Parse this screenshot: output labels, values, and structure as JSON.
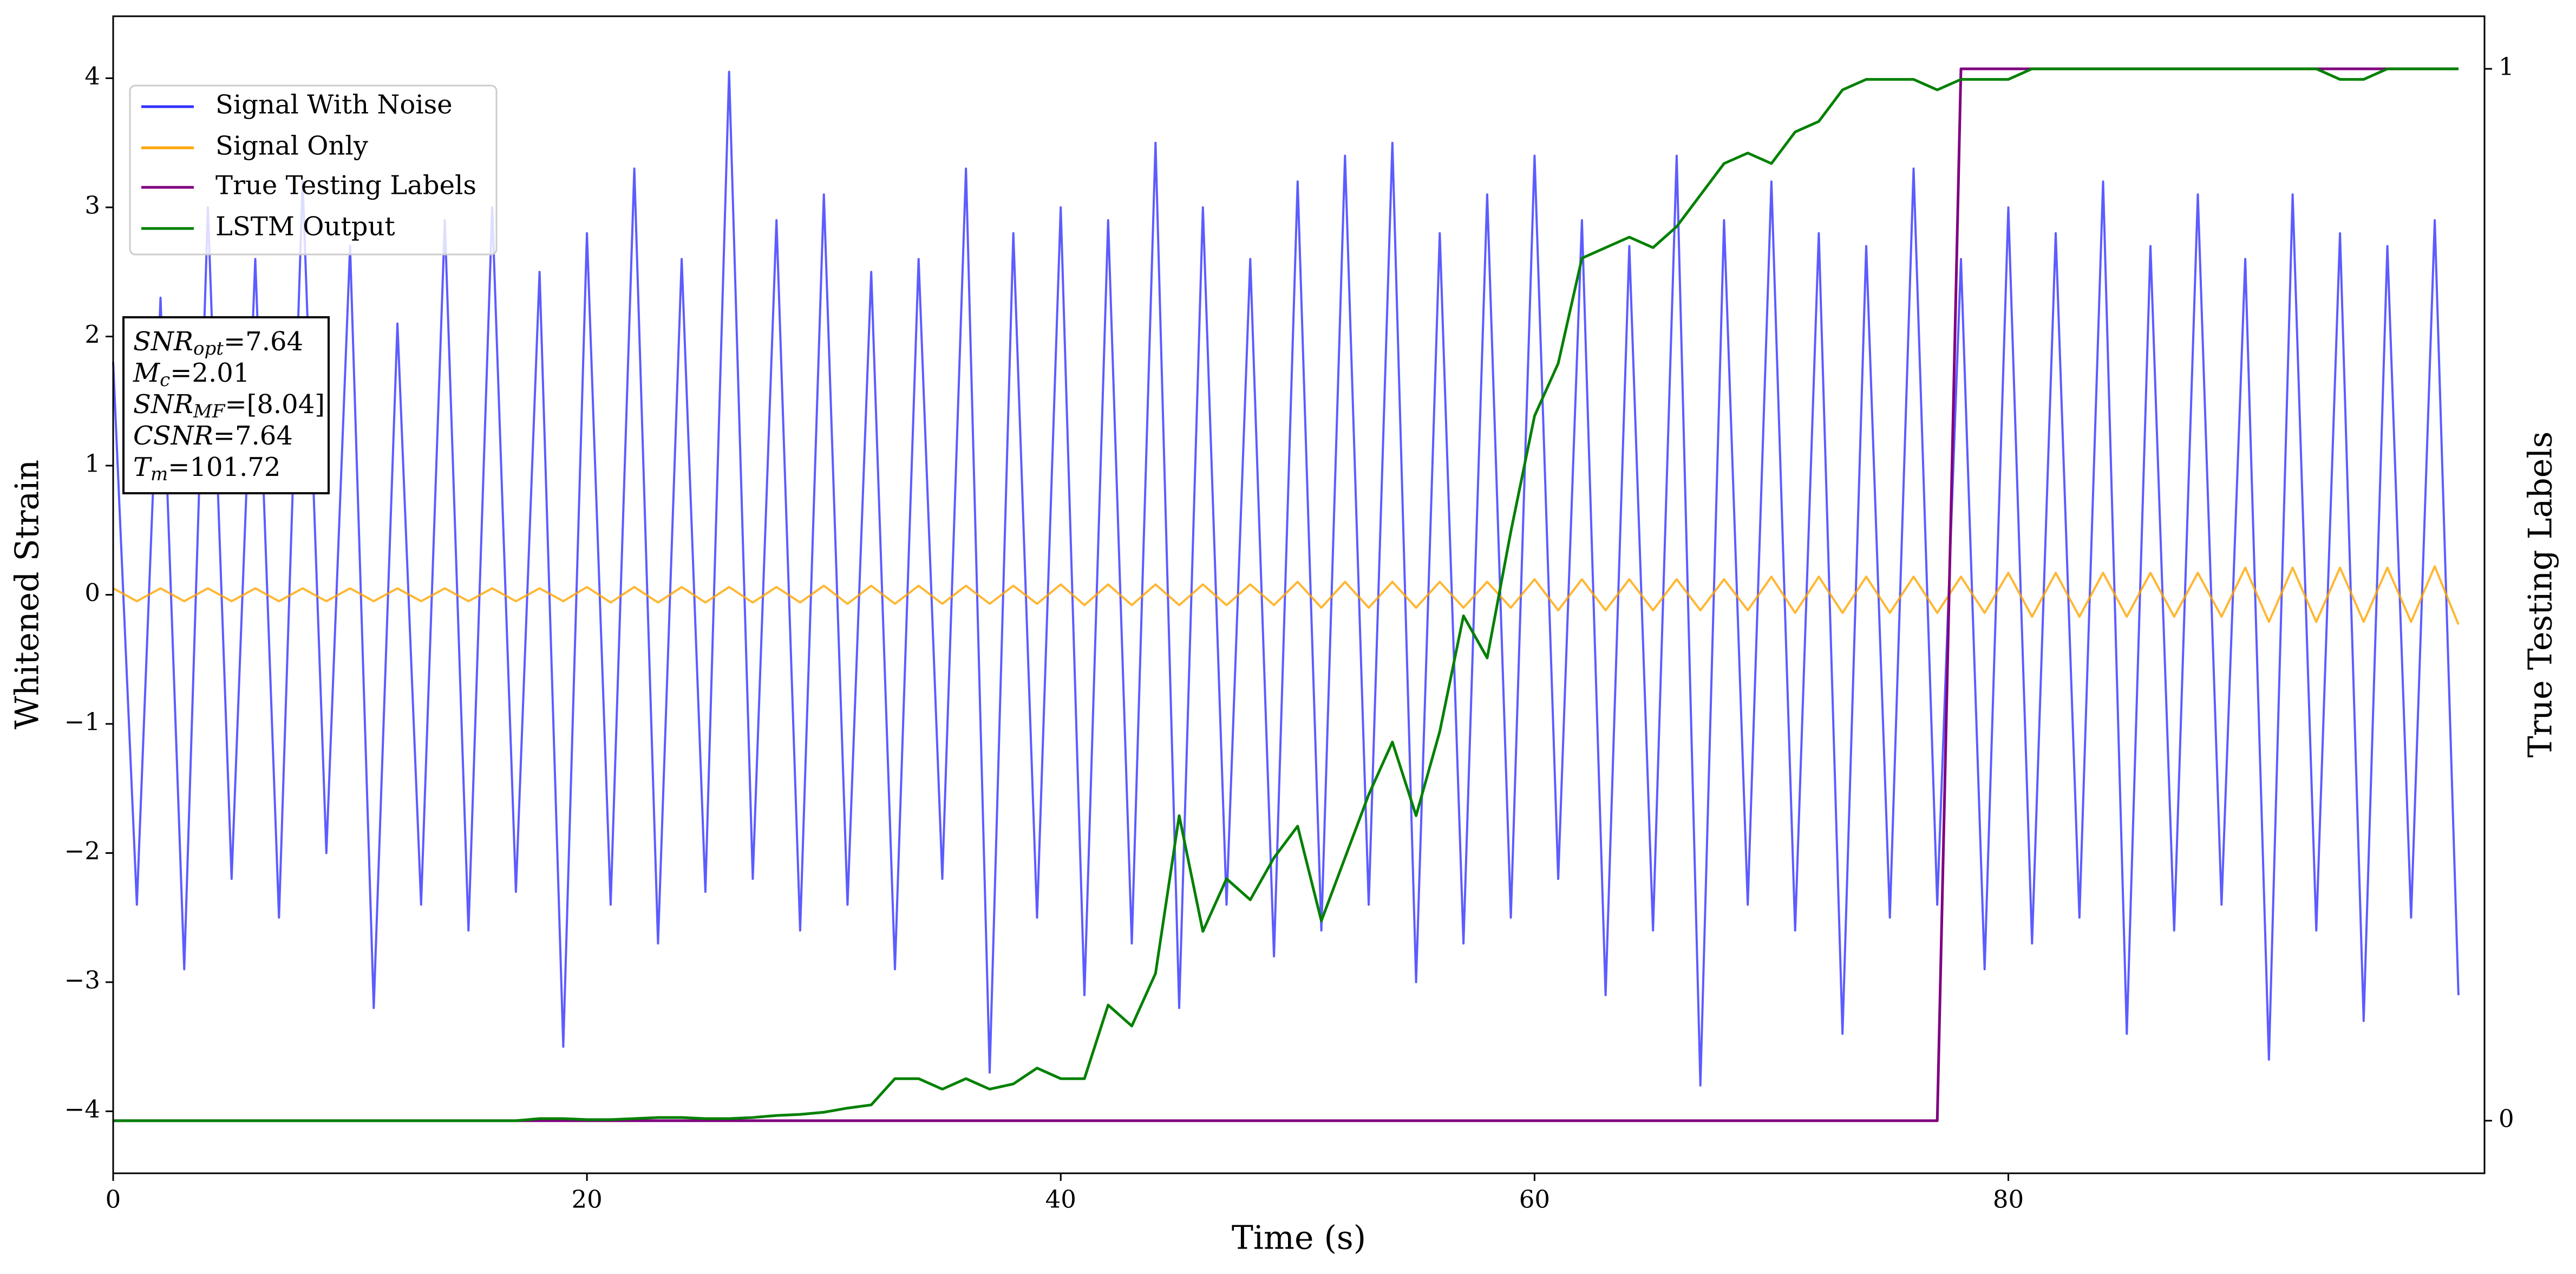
{
  "chart_data": {
    "type": "line",
    "xlabel": "Time (s)",
    "ylabel": "Whitened Strain",
    "y2label": "True Testing Labels",
    "x": [
      0,
      1,
      2,
      3,
      4,
      5,
      6,
      7,
      8,
      9,
      10,
      11,
      12,
      13,
      14,
      15,
      16,
      17,
      18,
      19,
      20,
      21,
      22,
      23,
      24,
      25,
      26,
      27,
      28,
      29,
      30,
      31,
      32,
      33,
      34,
      35,
      36,
      37,
      38,
      39,
      40,
      41,
      42,
      43,
      44,
      45,
      46,
      47,
      48,
      49,
      50,
      51,
      52,
      53,
      54,
      55,
      56,
      57,
      58,
      59,
      60,
      61,
      62,
      63,
      64,
      65,
      66,
      67,
      68,
      69,
      70,
      71,
      72,
      73,
      74,
      75,
      76,
      77,
      78,
      79,
      80,
      81,
      82,
      83,
      84,
      85,
      86,
      87,
      88,
      89,
      90,
      91,
      92,
      93,
      94,
      95,
      96,
      97,
      98,
      99
    ],
    "series": [
      {
        "name": "Signal With Noise",
        "color": "#3333ff",
        "values": [
          1.8,
          -2.4,
          2.3,
          -2.9,
          3.0,
          -2.2,
          2.6,
          -2.5,
          3.2,
          -2.0,
          2.7,
          -3.2,
          2.1,
          -2.4,
          2.9,
          -2.6,
          3.0,
          -2.3,
          2.5,
          -3.5,
          2.8,
          -2.4,
          3.3,
          -2.7,
          2.6,
          -2.3,
          4.05,
          -2.2,
          2.9,
          -2.6,
          3.1,
          -2.4,
          2.5,
          -2.9,
          2.6,
          -2.2,
          3.3,
          -3.7,
          2.8,
          -2.5,
          3.0,
          -3.1,
          2.9,
          -2.7,
          3.5,
          -3.2,
          3.0,
          -2.4,
          2.6,
          -2.8,
          3.2,
          -2.6,
          3.4,
          -2.4,
          3.5,
          -3.0,
          2.8,
          -2.7,
          3.1,
          -2.5,
          3.4,
          -2.2,
          2.9,
          -3.1,
          2.7,
          -2.6,
          3.4,
          -3.8,
          2.9,
          -2.4,
          3.2,
          -2.6,
          2.8,
          -3.4,
          2.7,
          -2.5,
          3.3,
          -2.4,
          2.6,
          -2.9,
          3.0,
          -2.7,
          2.8,
          -2.5,
          3.2,
          -3.4,
          2.7,
          -2.6,
          3.1,
          -2.4,
          2.6,
          -3.6,
          3.1,
          -2.6,
          2.8,
          -3.3,
          2.7,
          -2.5,
          2.9,
          -3.1
        ]
      },
      {
        "name": "Signal Only",
        "color": "#ffa500",
        "values": [
          0.05,
          -0.05,
          0.05,
          -0.05,
          0.05,
          -0.05,
          0.05,
          -0.05,
          0.05,
          -0.05,
          0.05,
          -0.05,
          0.05,
          -0.05,
          0.05,
          -0.05,
          0.05,
          -0.05,
          0.05,
          -0.05,
          0.06,
          -0.06,
          0.06,
          -0.06,
          0.06,
          -0.06,
          0.06,
          -0.06,
          0.06,
          -0.06,
          0.07,
          -0.07,
          0.07,
          -0.07,
          0.07,
          -0.07,
          0.07,
          -0.07,
          0.07,
          -0.07,
          0.08,
          -0.08,
          0.08,
          -0.08,
          0.08,
          -0.08,
          0.08,
          -0.08,
          0.08,
          -0.08,
          0.1,
          -0.1,
          0.1,
          -0.1,
          0.1,
          -0.1,
          0.1,
          -0.1,
          0.1,
          -0.1,
          0.12,
          -0.12,
          0.12,
          -0.12,
          0.12,
          -0.12,
          0.12,
          -0.12,
          0.12,
          -0.12,
          0.14,
          -0.14,
          0.14,
          -0.14,
          0.14,
          -0.14,
          0.14,
          -0.14,
          0.14,
          -0.14,
          0.17,
          -0.17,
          0.17,
          -0.17,
          0.17,
          -0.17,
          0.17,
          -0.17,
          0.17,
          -0.17,
          0.21,
          -0.21,
          0.21,
          -0.21,
          0.21,
          -0.21,
          0.21,
          -0.21,
          0.22,
          -0.23
        ]
      },
      {
        "name": "True Testing Labels",
        "color": "#800080",
        "axis": "y2",
        "values": [
          0,
          0,
          0,
          0,
          0,
          0,
          0,
          0,
          0,
          0,
          0,
          0,
          0,
          0,
          0,
          0,
          0,
          0,
          0,
          0,
          0,
          0,
          0,
          0,
          0,
          0,
          0,
          0,
          0,
          0,
          0,
          0,
          0,
          0,
          0,
          0,
          0,
          0,
          0,
          0,
          0,
          0,
          0,
          0,
          0,
          0,
          0,
          0,
          0,
          0,
          0,
          0,
          0,
          0,
          0,
          0,
          0,
          0,
          0,
          0,
          0,
          0,
          0,
          0,
          0,
          0,
          0,
          0,
          0,
          0,
          0,
          0,
          0,
          0,
          0,
          0,
          0,
          0,
          1,
          1,
          1,
          1,
          1,
          1,
          1,
          1,
          1,
          1,
          1,
          1,
          1,
          1,
          1,
          1,
          1,
          1,
          1,
          1,
          1,
          1
        ]
      },
      {
        "name": "LSTM Output",
        "color": "#008000",
        "axis": "y2",
        "values": [
          0,
          0,
          0,
          0,
          0,
          0,
          0,
          0,
          0,
          0,
          0,
          0,
          0,
          0,
          0,
          0,
          0,
          0,
          0.002,
          0.002,
          0.001,
          0.001,
          0.002,
          0.003,
          0.003,
          0.002,
          0.002,
          0.003,
          0.005,
          0.006,
          0.008,
          0.012,
          0.015,
          0.04,
          0.04,
          0.03,
          0.04,
          0.03,
          0.035,
          0.05,
          0.04,
          0.04,
          0.11,
          0.09,
          0.14,
          0.29,
          0.18,
          0.23,
          0.21,
          0.25,
          0.28,
          0.19,
          0.25,
          0.31,
          0.36,
          0.29,
          0.37,
          0.48,
          0.44,
          0.56,
          0.67,
          0.72,
          0.82,
          0.83,
          0.84,
          0.83,
          0.85,
          0.88,
          0.91,
          0.92,
          0.91,
          0.94,
          0.95,
          0.98,
          0.99,
          0.99,
          0.99,
          0.98,
          0.99,
          0.99,
          0.99,
          1.0,
          1.0,
          1.0,
          1.0,
          1.0,
          1.0,
          1.0,
          1.0,
          1.0,
          1.0,
          1.0,
          1.0,
          1.0,
          0.99,
          0.99,
          1.0,
          1.0,
          1.0,
          1.0
        ]
      }
    ],
    "xlim": [
      0,
      100.1
    ],
    "xticks": [
      0,
      20,
      40,
      60,
      80
    ],
    "ylim": [
      -4.48,
      4.48
    ],
    "yticks": [
      {
        "value": -4,
        "label": "−4"
      },
      {
        "value": -3,
        "label": "−3"
      },
      {
        "value": -2,
        "label": "−2"
      },
      {
        "value": -1,
        "label": "−1"
      },
      0,
      1,
      2,
      3,
      4
    ],
    "y2lim": [
      -0.05,
      1.05
    ],
    "y2ticks": [
      0,
      1
    ],
    "legend": "upper left",
    "annotation": [
      {
        "name": "SNR",
        "sub": "opt",
        "text": "=7.64"
      },
      {
        "name": "M",
        "sub": "c",
        "text": "=2.01"
      },
      {
        "name": "SNR",
        "sub": "MF",
        "text": "=[8.04]"
      },
      {
        "name": "CSNR",
        "text": "=7.64"
      },
      {
        "name": "T",
        "sub": "m",
        "text": "=101.72"
      }
    ]
  }
}
